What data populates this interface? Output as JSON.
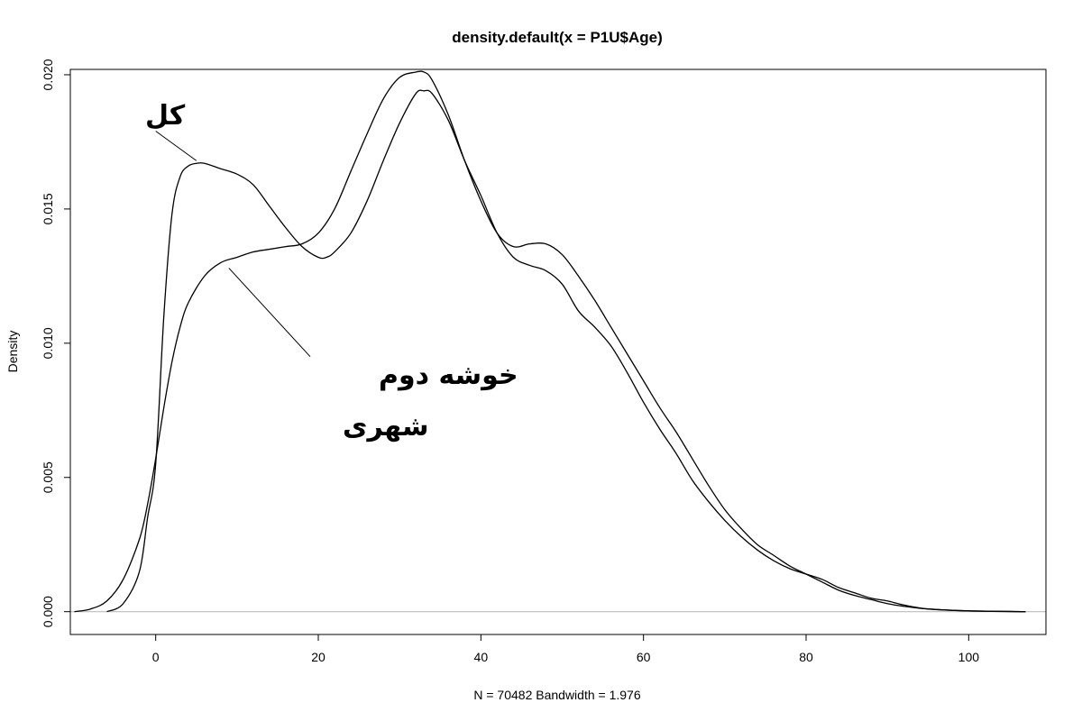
{
  "chart_data": {
    "type": "line",
    "title": "density.default(x = P1U$Age)",
    "xlabel": "N = 70482   Bandwidth = 1.976",
    "ylabel": "Density",
    "xlim": [
      -10.5,
      109.5
    ],
    "ylim": [
      -0.00085,
      0.0202
    ],
    "x_ticks": [
      0,
      20,
      40,
      60,
      80,
      100
    ],
    "x_tick_labels": [
      "0",
      "20",
      "40",
      "60",
      "80",
      "100"
    ],
    "y_ticks": [
      0,
      0.005,
      0.01,
      0.015,
      0.02
    ],
    "y_tick_labels": [
      "0.000",
      "0.005",
      "0.010",
      "0.015",
      "0.020"
    ],
    "grid": false,
    "zero_line": true,
    "series": [
      {
        "x": [
          -6,
          -4,
          -2,
          -1,
          0,
          1,
          2,
          3,
          4,
          5,
          6,
          8,
          10,
          12,
          14,
          16,
          18,
          20,
          21,
          22,
          24,
          26,
          28,
          30,
          32,
          33,
          34,
          36,
          38,
          40,
          42,
          44,
          46,
          48,
          50,
          52,
          54,
          56,
          58,
          60,
          62,
          64,
          66,
          68,
          70,
          72,
          74,
          76,
          78,
          80,
          82,
          84,
          86,
          88,
          90,
          92,
          95,
          100,
          107
        ],
        "y": [
          0,
          0.0003,
          0.0015,
          0.0035,
          0.0055,
          0.011,
          0.0148,
          0.0162,
          0.0166,
          0.0167,
          0.0167,
          0.0165,
          0.0163,
          0.0159,
          0.0151,
          0.0143,
          0.0136,
          0.0132,
          0.0132,
          0.0134,
          0.0141,
          0.0153,
          0.0168,
          0.0182,
          0.0193,
          0.0194,
          0.0193,
          0.0183,
          0.0168,
          0.0155,
          0.0141,
          0.0132,
          0.0129,
          0.0127,
          0.0122,
          0.0112,
          0.0106,
          0.0099,
          0.0089,
          0.0078,
          0.0068,
          0.0059,
          0.0049,
          0.0041,
          0.0034,
          0.0028,
          0.0023,
          0.0019,
          0.0016,
          0.0014,
          0.0012,
          0.0009,
          0.0007,
          0.0005,
          0.0004,
          0.00025,
          0.0001,
          3e-05,
          0
        ]
      },
      {
        "x": [
          -10,
          -8,
          -6,
          -4,
          -2,
          -1,
          0,
          1,
          2,
          3,
          4,
          6,
          8,
          10,
          12,
          14,
          16,
          18,
          20,
          22,
          24,
          26,
          28,
          30,
          32,
          33,
          34,
          36,
          38,
          40,
          42,
          44,
          46,
          48,
          50,
          52,
          54,
          56,
          58,
          60,
          62,
          64,
          66,
          68,
          70,
          72,
          74,
          76,
          78,
          80,
          82,
          84,
          86,
          88,
          90,
          92,
          95,
          100,
          107
        ],
        "y": [
          0,
          0.0001,
          0.0004,
          0.0012,
          0.0027,
          0.004,
          0.0057,
          0.0076,
          0.0093,
          0.0106,
          0.0115,
          0.0125,
          0.013,
          0.0132,
          0.0134,
          0.0135,
          0.0136,
          0.0137,
          0.0141,
          0.015,
          0.0164,
          0.0178,
          0.0191,
          0.0199,
          0.0201,
          0.0201,
          0.0198,
          0.0185,
          0.0168,
          0.0153,
          0.0141,
          0.0136,
          0.0137,
          0.0137,
          0.0133,
          0.0125,
          0.0116,
          0.0106,
          0.0096,
          0.0086,
          0.0076,
          0.0067,
          0.0057,
          0.0047,
          0.0038,
          0.0031,
          0.0025,
          0.0021,
          0.0017,
          0.0014,
          0.0011,
          0.0008,
          0.0006,
          0.00045,
          0.0003,
          0.0002,
          0.0001,
          3e-05,
          0
        ]
      }
    ],
    "annotations": [
      {
        "text": "کل",
        "target_series": 0,
        "target": [
          5,
          0.0168
        ],
        "from": [
          0,
          0.0179
        ]
      },
      {
        "text": "خوشه دوم",
        "target_series": 1,
        "target": [
          9,
          0.0128
        ],
        "from": [
          19,
          0.0095
        ]
      },
      {
        "text": "شهری"
      }
    ]
  }
}
